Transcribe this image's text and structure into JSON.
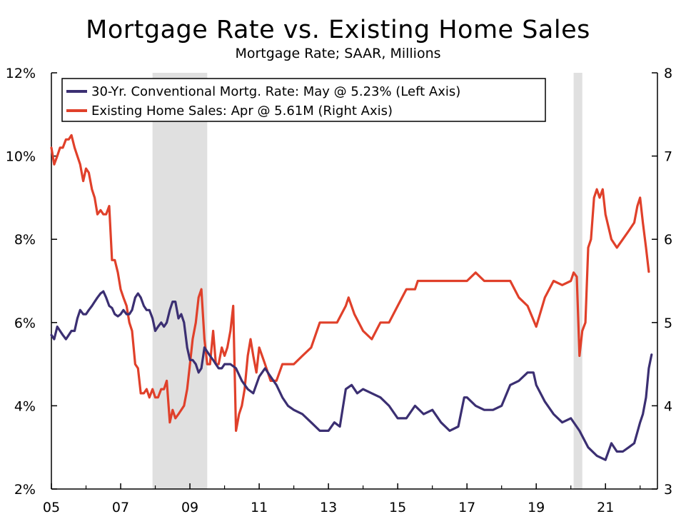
{
  "chart_data": {
    "type": "line",
    "title": "Mortgage Rate vs. Existing Home Sales",
    "subtitle": "Mortgage Rate; SAAR, Millions",
    "x_tick_labels": [
      "05",
      "07",
      "09",
      "11",
      "13",
      "15",
      "17",
      "19",
      "21"
    ],
    "x_tick_years": [
      2005,
      2007,
      2009,
      2011,
      2013,
      2015,
      2017,
      2019,
      2021
    ],
    "xlim": [
      2005.0,
      2022.5
    ],
    "left_axis": {
      "ylim": [
        2,
        12
      ],
      "ticks": [
        2,
        4,
        6,
        8,
        10,
        12
      ],
      "tick_labels": [
        "2%",
        "4%",
        "6%",
        "8%",
        "10%",
        "12%"
      ]
    },
    "right_axis": {
      "ylim": [
        3,
        8
      ],
      "ticks": [
        3,
        4,
        5,
        6,
        7,
        8
      ],
      "tick_labels": [
        "3",
        "4",
        "5",
        "6",
        "7",
        "8"
      ]
    },
    "recessions": [
      [
        2007.92,
        2009.5
      ],
      [
        2020.08,
        2020.33
      ]
    ],
    "recession_color": "#e0e0e0",
    "legend_position": "top-left",
    "series": [
      {
        "name": "30-Yr. Conventional Mortg. Rate: May @ 5.23% (Left Axis)",
        "axis": "left",
        "color": "#3b2f72",
        "x": [
          2005.0,
          2005.08,
          2005.17,
          2005.25,
          2005.33,
          2005.42,
          2005.5,
          2005.58,
          2005.67,
          2005.75,
          2005.83,
          2005.92,
          2006.0,
          2006.08,
          2006.17,
          2006.25,
          2006.33,
          2006.42,
          2006.5,
          2006.58,
          2006.67,
          2006.75,
          2006.83,
          2006.92,
          2007.0,
          2007.08,
          2007.17,
          2007.25,
          2007.33,
          2007.42,
          2007.5,
          2007.58,
          2007.67,
          2007.75,
          2007.83,
          2007.92,
          2008.0,
          2008.08,
          2008.17,
          2008.25,
          2008.33,
          2008.42,
          2008.5,
          2008.58,
          2008.67,
          2008.75,
          2008.83,
          2008.92,
          2009.0,
          2009.08,
          2009.17,
          2009.25,
          2009.33,
          2009.42,
          2009.5,
          2009.58,
          2009.67,
          2009.75,
          2009.83,
          2009.92,
          2010.0,
          2010.17,
          2010.33,
          2010.5,
          2010.67,
          2010.83,
          2011.0,
          2011.17,
          2011.33,
          2011.5,
          2011.67,
          2011.83,
          2012.0,
          2012.25,
          2012.5,
          2012.75,
          2013.0,
          2013.17,
          2013.33,
          2013.5,
          2013.67,
          2013.83,
          2014.0,
          2014.25,
          2014.5,
          2014.75,
          2015.0,
          2015.25,
          2015.5,
          2015.75,
          2016.0,
          2016.25,
          2016.5,
          2016.75,
          2016.92,
          2017.0,
          2017.25,
          2017.5,
          2017.75,
          2018.0,
          2018.25,
          2018.5,
          2018.75,
          2018.92,
          2019.0,
          2019.25,
          2019.5,
          2019.75,
          2020.0,
          2020.25,
          2020.5,
          2020.75,
          2021.0,
          2021.17,
          2021.33,
          2021.5,
          2021.67,
          2021.83,
          2022.0,
          2022.08,
          2022.17,
          2022.25,
          2022.33
        ],
        "values": [
          5.7,
          5.6,
          5.9,
          5.8,
          5.7,
          5.6,
          5.7,
          5.8,
          5.8,
          6.1,
          6.3,
          6.2,
          6.2,
          6.3,
          6.4,
          6.5,
          6.6,
          6.7,
          6.75,
          6.6,
          6.4,
          6.35,
          6.2,
          6.15,
          6.2,
          6.3,
          6.2,
          6.2,
          6.3,
          6.6,
          6.7,
          6.6,
          6.4,
          6.3,
          6.3,
          6.1,
          5.8,
          5.9,
          6.0,
          5.9,
          6.0,
          6.3,
          6.5,
          6.5,
          6.1,
          6.2,
          6.0,
          5.4,
          5.1,
          5.1,
          5.0,
          4.8,
          4.9,
          5.4,
          5.3,
          5.2,
          5.1,
          5.0,
          4.9,
          4.9,
          5.0,
          5.0,
          4.9,
          4.6,
          4.4,
          4.3,
          4.7,
          4.9,
          4.7,
          4.5,
          4.2,
          4.0,
          3.9,
          3.8,
          3.6,
          3.4,
          3.4,
          3.6,
          3.5,
          4.4,
          4.5,
          4.3,
          4.4,
          4.3,
          4.2,
          4.0,
          3.7,
          3.7,
          4.0,
          3.8,
          3.9,
          3.6,
          3.4,
          3.5,
          4.2,
          4.2,
          4.0,
          3.9,
          3.9,
          4.0,
          4.5,
          4.6,
          4.8,
          4.8,
          4.5,
          4.1,
          3.8,
          3.6,
          3.7,
          3.4,
          3.0,
          2.8,
          2.7,
          3.1,
          2.9,
          2.9,
          3.0,
          3.1,
          3.6,
          3.8,
          4.2,
          4.9,
          5.23
        ]
      },
      {
        "name": "Existing Home Sales: Apr @ 5.61M (Right Axis)",
        "axis": "right",
        "color": "#e0402a",
        "x": [
          2005.0,
          2005.08,
          2005.17,
          2005.25,
          2005.33,
          2005.42,
          2005.5,
          2005.58,
          2005.67,
          2005.75,
          2005.83,
          2005.92,
          2006.0,
          2006.08,
          2006.17,
          2006.25,
          2006.33,
          2006.42,
          2006.5,
          2006.58,
          2006.67,
          2006.75,
          2006.83,
          2006.92,
          2007.0,
          2007.08,
          2007.17,
          2007.25,
          2007.33,
          2007.42,
          2007.5,
          2007.58,
          2007.67,
          2007.75,
          2007.83,
          2007.92,
          2008.0,
          2008.08,
          2008.17,
          2008.25,
          2008.33,
          2008.42,
          2008.5,
          2008.58,
          2008.67,
          2008.75,
          2008.83,
          2008.92,
          2009.0,
          2009.08,
          2009.17,
          2009.25,
          2009.33,
          2009.42,
          2009.5,
          2009.58,
          2009.67,
          2009.75,
          2009.83,
          2009.92,
          2010.0,
          2010.08,
          2010.17,
          2010.25,
          2010.33,
          2010.42,
          2010.5,
          2010.58,
          2010.67,
          2010.75,
          2010.83,
          2010.92,
          2011.0,
          2011.17,
          2011.33,
          2011.5,
          2011.67,
          2011.83,
          2012.0,
          2012.25,
          2012.5,
          2012.75,
          2013.0,
          2013.25,
          2013.5,
          2013.58,
          2013.75,
          2014.0,
          2014.25,
          2014.5,
          2014.75,
          2015.0,
          2015.25,
          2015.5,
          2015.58,
          2015.75,
          2016.0,
          2016.25,
          2016.5,
          2016.58,
          2016.67,
          2016.83,
          2017.0,
          2017.25,
          2017.5,
          2017.75,
          2018.0,
          2018.25,
          2018.5,
          2018.75,
          2019.0,
          2019.25,
          2019.5,
          2019.75,
          2020.0,
          2020.08,
          2020.17,
          2020.25,
          2020.33,
          2020.42,
          2020.5,
          2020.58,
          2020.67,
          2020.75,
          2020.83,
          2020.92,
          2021.0,
          2021.17,
          2021.33,
          2021.5,
          2021.67,
          2021.83,
          2021.92,
          2022.0,
          2022.08,
          2022.17,
          2022.25
        ],
        "values": [
          7.1,
          6.9,
          7.0,
          7.1,
          7.1,
          7.2,
          7.2,
          7.25,
          7.1,
          7.0,
          6.9,
          6.7,
          6.85,
          6.8,
          6.6,
          6.5,
          6.3,
          6.35,
          6.3,
          6.3,
          6.4,
          5.75,
          5.75,
          5.6,
          5.4,
          5.3,
          5.2,
          5.0,
          4.9,
          4.5,
          4.45,
          4.15,
          4.15,
          4.2,
          4.1,
          4.2,
          4.1,
          4.1,
          4.2,
          4.2,
          4.3,
          3.8,
          3.95,
          3.85,
          3.9,
          3.95,
          4.0,
          4.2,
          4.5,
          4.8,
          5.0,
          5.3,
          5.4,
          4.8,
          4.5,
          4.5,
          4.9,
          4.5,
          4.5,
          4.7,
          4.6,
          4.7,
          4.9,
          5.2,
          3.7,
          3.9,
          4.0,
          4.2,
          4.6,
          4.8,
          4.6,
          4.4,
          4.7,
          4.5,
          4.3,
          4.3,
          4.5,
          4.5,
          4.5,
          4.6,
          4.7,
          5.0,
          5.0,
          5.0,
          5.2,
          5.3,
          5.1,
          4.9,
          4.8,
          5.0,
          5.0,
          5.2,
          5.4,
          5.4,
          5.5,
          5.5,
          5.5,
          5.5,
          5.5,
          5.5,
          5.5,
          5.5,
          5.5,
          5.6,
          5.5,
          5.5,
          5.5,
          5.5,
          5.3,
          5.2,
          4.95,
          5.3,
          5.5,
          5.45,
          5.5,
          5.6,
          5.55,
          4.6,
          4.9,
          5.0,
          5.9,
          6.0,
          6.5,
          6.6,
          6.5,
          6.6,
          6.3,
          6.0,
          5.9,
          6.0,
          6.1,
          6.2,
          6.4,
          6.5,
          6.2,
          5.9,
          5.61
        ]
      }
    ]
  }
}
